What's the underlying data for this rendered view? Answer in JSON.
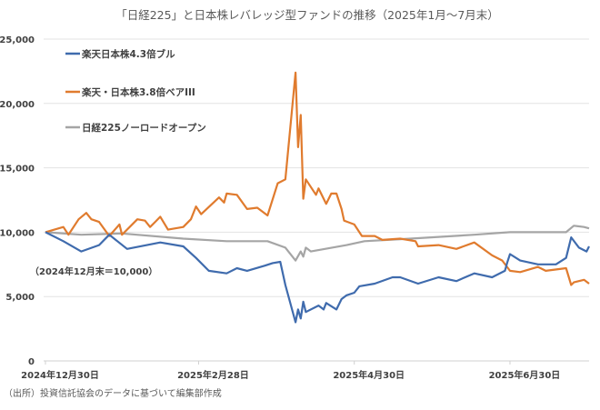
{
  "chart_data": {
    "type": "line",
    "title": "「日経225」と日本株レバレッジ型ファンドの推移（2025年1月～7月末）",
    "xlabel": "",
    "ylabel": "",
    "x_unit": "days since 2024-12-30",
    "xlim": [
      0,
      213
    ],
    "ylim": [
      0,
      25000
    ],
    "grid": true,
    "legend_position": "top-left",
    "y_ticks": [
      {
        "value": 0,
        "label": "0"
      },
      {
        "value": 5000,
        "label": "5,000"
      },
      {
        "value": 10000,
        "label": "10,000"
      },
      {
        "value": 15000,
        "label": "15,000"
      },
      {
        "value": 20000,
        "label": "20,000"
      },
      {
        "value": 25000,
        "label": "25,000"
      }
    ],
    "x_ticks": [
      {
        "value": 0,
        "label": "2024年12月30日"
      },
      {
        "value": 60,
        "label": "2025年2月28日"
      },
      {
        "value": 121,
        "label": "2025年4月30日"
      },
      {
        "value": 182,
        "label": "2025年6月30日"
      }
    ],
    "annotation": "（2024年12月末＝10,000）",
    "source": "（出所）投資信託協会のデータに基づいて編集部作成",
    "series": [
      {
        "name": "楽天日本株4.3倍ブル",
        "color": "#3F6BAD",
        "points": [
          [
            0,
            10000
          ],
          [
            7,
            9300
          ],
          [
            14,
            8500
          ],
          [
            21,
            9000
          ],
          [
            25,
            9800
          ],
          [
            32,
            8700
          ],
          [
            45,
            9200
          ],
          [
            54,
            8900
          ],
          [
            59,
            8000
          ],
          [
            64,
            7000
          ],
          [
            71,
            6800
          ],
          [
            75,
            7200
          ],
          [
            79,
            7000
          ],
          [
            86,
            7400
          ],
          [
            89,
            7600
          ],
          [
            92,
            7700
          ],
          [
            94,
            5900
          ],
          [
            98,
            3000
          ],
          [
            99,
            4000
          ],
          [
            100,
            3300
          ],
          [
            101,
            4600
          ],
          [
            102,
            3800
          ],
          [
            107,
            4300
          ],
          [
            109,
            4000
          ],
          [
            110,
            4500
          ],
          [
            114,
            4000
          ],
          [
            116,
            4800
          ],
          [
            118,
            5100
          ],
          [
            121,
            5300
          ],
          [
            123,
            5800
          ],
          [
            129,
            6000
          ],
          [
            136,
            6500
          ],
          [
            139,
            6500
          ],
          [
            146,
            6000
          ],
          [
            154,
            6500
          ],
          [
            161,
            6200
          ],
          [
            168,
            6800
          ],
          [
            175,
            6500
          ],
          [
            180,
            7000
          ],
          [
            181,
            7700
          ],
          [
            182,
            8300
          ],
          [
            186,
            7800
          ],
          [
            193,
            7500
          ],
          [
            200,
            7500
          ],
          [
            204,
            8000
          ],
          [
            206,
            9600
          ],
          [
            209,
            8800
          ],
          [
            212,
            8500
          ],
          [
            213,
            8900
          ]
        ]
      },
      {
        "name": "楽天・日本株3.8倍ベアIII",
        "color": "#E07B2E",
        "points": [
          [
            0,
            10000
          ],
          [
            7,
            10400
          ],
          [
            9,
            9800
          ],
          [
            13,
            11000
          ],
          [
            16,
            11500
          ],
          [
            18,
            11000
          ],
          [
            21,
            10800
          ],
          [
            25,
            9700
          ],
          [
            29,
            10600
          ],
          [
            30,
            9800
          ],
          [
            36,
            11000
          ],
          [
            39,
            10900
          ],
          [
            41,
            10400
          ],
          [
            43,
            10800
          ],
          [
            45,
            11200
          ],
          [
            48,
            10200
          ],
          [
            54,
            10400
          ],
          [
            57,
            11000
          ],
          [
            59,
            12000
          ],
          [
            61,
            11400
          ],
          [
            68,
            12700
          ],
          [
            70,
            12300
          ],
          [
            71,
            13000
          ],
          [
            75,
            12900
          ],
          [
            79,
            11800
          ],
          [
            83,
            11900
          ],
          [
            87,
            11300
          ],
          [
            91,
            13800
          ],
          [
            94,
            14100
          ],
          [
            98,
            22400
          ],
          [
            99,
            16600
          ],
          [
            100,
            19100
          ],
          [
            101,
            12600
          ],
          [
            102,
            14100
          ],
          [
            106,
            12900
          ],
          [
            107,
            13400
          ],
          [
            110,
            12200
          ],
          [
            112,
            13000
          ],
          [
            114,
            13000
          ],
          [
            116,
            11800
          ],
          [
            117,
            10900
          ],
          [
            121,
            10600
          ],
          [
            124,
            9700
          ],
          [
            129,
            9700
          ],
          [
            132,
            9400
          ],
          [
            139,
            9500
          ],
          [
            145,
            9300
          ],
          [
            146,
            8900
          ],
          [
            154,
            9000
          ],
          [
            161,
            8700
          ],
          [
            168,
            9200
          ],
          [
            175,
            8200
          ],
          [
            179,
            7800
          ],
          [
            182,
            7000
          ],
          [
            186,
            6900
          ],
          [
            193,
            7300
          ],
          [
            196,
            7000
          ],
          [
            204,
            7200
          ],
          [
            206,
            5900
          ],
          [
            207,
            6100
          ],
          [
            211,
            6300
          ],
          [
            213,
            6000
          ]
        ]
      },
      {
        "name": "日経225ノーロードオープン",
        "color": "#A5A5A5",
        "points": [
          [
            0,
            10000
          ],
          [
            14,
            9800
          ],
          [
            30,
            9900
          ],
          [
            54,
            9500
          ],
          [
            71,
            9300
          ],
          [
            87,
            9300
          ],
          [
            94,
            8800
          ],
          [
            98,
            7800
          ],
          [
            100,
            8500
          ],
          [
            101,
            8100
          ],
          [
            102,
            8800
          ],
          [
            104,
            8500
          ],
          [
            118,
            9000
          ],
          [
            125,
            9300
          ],
          [
            143,
            9500
          ],
          [
            168,
            9800
          ],
          [
            182,
            10000
          ],
          [
            204,
            10000
          ],
          [
            207,
            10500
          ],
          [
            211,
            10400
          ],
          [
            213,
            10300
          ]
        ]
      }
    ]
  }
}
